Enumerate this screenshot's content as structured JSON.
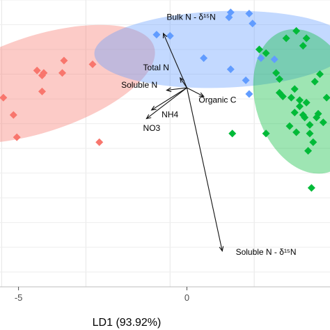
{
  "chart_data": {
    "type": "scatter",
    "title": "",
    "xlabel": "LD1 (93.92%)",
    "ylabel": "",
    "xlim": [
      -5.55,
      4.25
    ],
    "ylim": [
      -6.6,
      5.0
    ],
    "x_ticks": [
      -5,
      0
    ],
    "x_tick_labels": [
      "-5",
      "0"
    ],
    "grid": true,
    "legend": "none",
    "series": [
      {
        "color": "#f8766d",
        "ellipse": {
          "cx": -4.4,
          "cy": 1.6,
          "rx": 3.6,
          "ry": 1.95,
          "angle_deg": -18
        },
        "points": [
          {
            "x": -3.65,
            "y": 2.55
          },
          {
            "x": -2.8,
            "y": 2.4
          },
          {
            "x": -4.45,
            "y": 2.15
          },
          {
            "x": -4.25,
            "y": 2.05
          },
          {
            "x": -4.3,
            "y": 1.95
          },
          {
            "x": -3.7,
            "y": 2.05
          },
          {
            "x": -4.3,
            "y": 1.3
          },
          {
            "x": -5.45,
            "y": 1.05
          },
          {
            "x": -5.15,
            "y": 0.35
          },
          {
            "x": -2.6,
            "y": -0.75
          },
          {
            "x": -5.05,
            "y": -0.55
          }
        ]
      },
      {
        "color": "#619cff",
        "ellipse": {
          "cx": 1.05,
          "cy": 3.0,
          "rx": 3.8,
          "ry": 1.55,
          "angle_deg": -2
        },
        "points": [
          {
            "x": 1.3,
            "y": 4.5
          },
          {
            "x": 1.85,
            "y": 4.45
          },
          {
            "x": 1.25,
            "y": 4.3
          },
          {
            "x": 1.95,
            "y": 4.05
          },
          {
            "x": -0.9,
            "y": 3.6
          },
          {
            "x": -0.5,
            "y": 3.55
          },
          {
            "x": 0.5,
            "y": 2.65
          },
          {
            "x": 2.2,
            "y": 2.65
          },
          {
            "x": 2.6,
            "y": 2.6
          },
          {
            "x": 1.3,
            "y": 2.2
          },
          {
            "x": 1.75,
            "y": 1.75
          },
          {
            "x": 1.85,
            "y": 1.2
          }
        ]
      },
      {
        "color": "#00ba38",
        "ellipse": {
          "cx": 3.55,
          "cy": 0.9,
          "rx": 1.5,
          "ry": 3.0,
          "angle_deg": -18
        },
        "points": [
          {
            "x": 3.25,
            "y": 3.75
          },
          {
            "x": 2.95,
            "y": 3.45
          },
          {
            "x": 3.55,
            "y": 3.45
          },
          {
            "x": 3.45,
            "y": 3.15
          },
          {
            "x": 2.15,
            "y": 3.0
          },
          {
            "x": 2.35,
            "y": 2.85
          },
          {
            "x": 2.65,
            "y": 2.05
          },
          {
            "x": 3.95,
            "y": 2.0
          },
          {
            "x": 2.75,
            "y": 1.8
          },
          {
            "x": 3.8,
            "y": 1.7
          },
          {
            "x": 3.2,
            "y": 1.4
          },
          {
            "x": 2.75,
            "y": 1.25
          },
          {
            "x": 2.85,
            "y": 1.1
          },
          {
            "x": 3.1,
            "y": 1.05
          },
          {
            "x": 4.15,
            "y": 1.05
          },
          {
            "x": 3.35,
            "y": 0.95
          },
          {
            "x": 3.55,
            "y": 0.85
          },
          {
            "x": 3.35,
            "y": 0.7
          },
          {
            "x": 3.2,
            "y": 0.45
          },
          {
            "x": 3.45,
            "y": 0.35
          },
          {
            "x": 3.9,
            "y": 0.4
          },
          {
            "x": 3.5,
            "y": 0.25
          },
          {
            "x": 3.85,
            "y": 0.25
          },
          {
            "x": 4.05,
            "y": 0.05
          },
          {
            "x": 3.05,
            "y": -0.1
          },
          {
            "x": 3.65,
            "y": -0.05
          },
          {
            "x": 3.25,
            "y": -0.35
          },
          {
            "x": 2.35,
            "y": -0.4
          },
          {
            "x": 3.65,
            "y": -0.4
          },
          {
            "x": 1.35,
            "y": -0.4
          },
          {
            "x": 3.75,
            "y": -0.75
          },
          {
            "x": 3.6,
            "y": -1.1
          },
          {
            "x": 3.7,
            "y": -2.6
          }
        ]
      }
    ],
    "loadings": [
      {
        "label": "Bulk N - δ¹⁵N",
        "x": -0.7,
        "y": 3.65,
        "label_x": -0.6,
        "label_y": 4.2
      },
      {
        "label": "Total N",
        "x": -0.2,
        "y": 1.85,
        "label_x": -1.3,
        "label_y": 2.15
      },
      {
        "label": "Soluble N",
        "x": -0.6,
        "y": 1.35,
        "label_x": -1.95,
        "label_y": 1.45
      },
      {
        "label": "Organic C",
        "x": 0.5,
        "y": 1.1,
        "label_x": 0.35,
        "label_y": 0.85
      },
      {
        "label": "NH4",
        "x": -1.05,
        "y": 0.55,
        "label_x": -0.75,
        "label_y": 0.25
      },
      {
        "label": "NO3",
        "x": -1.2,
        "y": 0.2,
        "label_x": -1.3,
        "label_y": -0.3
      },
      {
        "label": "Soluble N - δ¹⁵N",
        "x": 1.05,
        "y": -5.15,
        "label_x": 1.45,
        "label_y": -5.3
      }
    ]
  }
}
